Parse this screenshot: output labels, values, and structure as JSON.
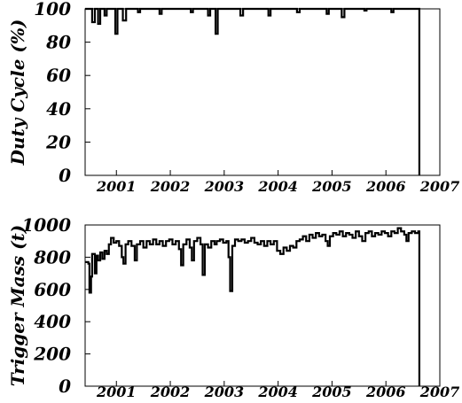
{
  "chart_data": [
    {
      "type": "line",
      "ylabel": "Duty Cycle (%)",
      "xlabel": "",
      "title": "",
      "xlim": [
        2000.42,
        2007.0
      ],
      "ylim": [
        0,
        100
      ],
      "yticks": [
        0,
        20,
        40,
        60,
        80,
        100
      ],
      "xticks": [
        2001,
        2002,
        2003,
        2004,
        2005,
        2006,
        2007
      ],
      "xtick_labels": [
        "2001",
        "2002",
        "2003",
        "2004",
        "2005",
        "2006",
        "2007"
      ],
      "ytick_labels": [
        "0",
        "20",
        "40",
        "60",
        "80",
        "100"
      ],
      "grid": false,
      "series": [
        {
          "style": "step",
          "points": [
            [
              2000.42,
              100
            ],
            [
              2000.55,
              100
            ],
            [
              2000.55,
              92
            ],
            [
              2000.6,
              92
            ],
            [
              2000.6,
              100
            ],
            [
              2000.66,
              100
            ],
            [
              2000.66,
              91
            ],
            [
              2000.7,
              91
            ],
            [
              2000.7,
              100
            ],
            [
              2000.78,
              100
            ],
            [
              2000.78,
              96
            ],
            [
              2000.82,
              96
            ],
            [
              2000.82,
              100
            ],
            [
              2000.98,
              100
            ],
            [
              2000.98,
              85
            ],
            [
              2001.02,
              85
            ],
            [
              2001.02,
              100
            ],
            [
              2001.12,
              100
            ],
            [
              2001.12,
              93
            ],
            [
              2001.18,
              93
            ],
            [
              2001.18,
              100
            ],
            [
              2001.4,
              100
            ],
            [
              2001.4,
              98
            ],
            [
              2001.44,
              98
            ],
            [
              2001.44,
              100
            ],
            [
              2001.8,
              100
            ],
            [
              2001.8,
              97
            ],
            [
              2001.84,
              97
            ],
            [
              2001.84,
              100
            ],
            [
              2002.38,
              100
            ],
            [
              2002.38,
              98
            ],
            [
              2002.42,
              98
            ],
            [
              2002.42,
              100
            ],
            [
              2002.7,
              100
            ],
            [
              2002.7,
              96
            ],
            [
              2002.74,
              96
            ],
            [
              2002.74,
              100
            ],
            [
              2002.84,
              100
            ],
            [
              2002.84,
              85
            ],
            [
              2002.88,
              85
            ],
            [
              2002.88,
              100
            ],
            [
              2003.3,
              100
            ],
            [
              2003.3,
              96
            ],
            [
              2003.35,
              96
            ],
            [
              2003.35,
              100
            ],
            [
              2003.82,
              100
            ],
            [
              2003.82,
              96
            ],
            [
              2003.86,
              96
            ],
            [
              2003.86,
              100
            ],
            [
              2004.35,
              100
            ],
            [
              2004.35,
              98
            ],
            [
              2004.4,
              98
            ],
            [
              2004.4,
              100
            ],
            [
              2004.9,
              100
            ],
            [
              2004.9,
              97
            ],
            [
              2004.94,
              97
            ],
            [
              2004.94,
              100
            ],
            [
              2005.18,
              100
            ],
            [
              2005.18,
              95
            ],
            [
              2005.23,
              95
            ],
            [
              2005.23,
              100
            ],
            [
              2005.6,
              100
            ],
            [
              2005.6,
              99
            ],
            [
              2005.64,
              99
            ],
            [
              2005.64,
              100
            ],
            [
              2006.1,
              100
            ],
            [
              2006.1,
              98
            ],
            [
              2006.14,
              98
            ],
            [
              2006.14,
              100
            ],
            [
              2006.62,
              100
            ],
            [
              2006.62,
              0
            ]
          ]
        }
      ]
    },
    {
      "type": "line",
      "ylabel": "Trigger Mass (t)",
      "xlabel": "",
      "title": "",
      "xlim": [
        2000.42,
        2007.0
      ],
      "ylim": [
        0,
        1000
      ],
      "yticks": [
        0,
        200,
        400,
        600,
        800,
        1000
      ],
      "xticks": [
        2001,
        2002,
        2003,
        2004,
        2005,
        2006,
        2007
      ],
      "xtick_labels": [
        "2001",
        "2002",
        "2003",
        "2004",
        "2005",
        "2006",
        "2007"
      ],
      "ytick_labels": [
        "0",
        "200",
        "400",
        "600",
        "800",
        "1000"
      ],
      "grid": false,
      "series": [
        {
          "style": "step",
          "points": [
            [
              2000.42,
              770
            ],
            [
              2000.48,
              760
            ],
            [
              2000.5,
              580
            ],
            [
              2000.53,
              680
            ],
            [
              2000.55,
              820
            ],
            [
              2000.6,
              700
            ],
            [
              2000.63,
              810
            ],
            [
              2000.66,
              780
            ],
            [
              2000.7,
              830
            ],
            [
              2000.74,
              790
            ],
            [
              2000.78,
              840
            ],
            [
              2000.82,
              820
            ],
            [
              2000.86,
              880
            ],
            [
              2000.9,
              920
            ],
            [
              2000.95,
              890
            ],
            [
              2001.0,
              900
            ],
            [
              2001.05,
              870
            ],
            [
              2001.1,
              800
            ],
            [
              2001.13,
              760
            ],
            [
              2001.17,
              880
            ],
            [
              2001.22,
              900
            ],
            [
              2001.28,
              870
            ],
            [
              2001.34,
              780
            ],
            [
              2001.38,
              880
            ],
            [
              2001.44,
              900
            ],
            [
              2001.5,
              860
            ],
            [
              2001.56,
              900
            ],
            [
              2001.62,
              880
            ],
            [
              2001.68,
              910
            ],
            [
              2001.74,
              880
            ],
            [
              2001.8,
              900
            ],
            [
              2001.86,
              870
            ],
            [
              2001.92,
              900
            ],
            [
              2001.98,
              910
            ],
            [
              2002.04,
              880
            ],
            [
              2002.1,
              900
            ],
            [
              2002.16,
              850
            ],
            [
              2002.2,
              750
            ],
            [
              2002.24,
              880
            ],
            [
              2002.3,
              910
            ],
            [
              2002.36,
              860
            ],
            [
              2002.4,
              780
            ],
            [
              2002.44,
              900
            ],
            [
              2002.5,
              920
            ],
            [
              2002.56,
              880
            ],
            [
              2002.6,
              690
            ],
            [
              2002.64,
              880
            ],
            [
              2002.7,
              860
            ],
            [
              2002.76,
              900
            ],
            [
              2002.82,
              880
            ],
            [
              2002.86,
              900
            ],
            [
              2002.92,
              910
            ],
            [
              2002.98,
              890
            ],
            [
              2003.04,
              900
            ],
            [
              2003.08,
              800
            ],
            [
              2003.11,
              590
            ],
            [
              2003.15,
              870
            ],
            [
              2003.2,
              910
            ],
            [
              2003.26,
              900
            ],
            [
              2003.32,
              910
            ],
            [
              2003.38,
              890
            ],
            [
              2003.44,
              900
            ],
            [
              2003.5,
              920
            ],
            [
              2003.56,
              890
            ],
            [
              2003.62,
              880
            ],
            [
              2003.68,
              900
            ],
            [
              2003.74,
              870
            ],
            [
              2003.8,
              900
            ],
            [
              2003.86,
              880
            ],
            [
              2003.92,
              900
            ],
            [
              2003.98,
              840
            ],
            [
              2004.04,
              820
            ],
            [
              2004.1,
              860
            ],
            [
              2004.16,
              840
            ],
            [
              2004.22,
              870
            ],
            [
              2004.28,
              860
            ],
            [
              2004.34,
              900
            ],
            [
              2004.4,
              910
            ],
            [
              2004.46,
              930
            ],
            [
              2004.52,
              900
            ],
            [
              2004.58,
              940
            ],
            [
              2004.64,
              920
            ],
            [
              2004.7,
              950
            ],
            [
              2004.76,
              930
            ],
            [
              2004.82,
              940
            ],
            [
              2004.88,
              900
            ],
            [
              2004.92,
              870
            ],
            [
              2004.96,
              930
            ],
            [
              2005.02,
              950
            ],
            [
              2005.08,
              940
            ],
            [
              2005.14,
              960
            ],
            [
              2005.2,
              930
            ],
            [
              2005.26,
              950
            ],
            [
              2005.32,
              940
            ],
            [
              2005.38,
              920
            ],
            [
              2005.44,
              960
            ],
            [
              2005.5,
              930
            ],
            [
              2005.56,
              900
            ],
            [
              2005.62,
              950
            ],
            [
              2005.68,
              960
            ],
            [
              2005.74,
              930
            ],
            [
              2005.8,
              950
            ],
            [
              2005.86,
              940
            ],
            [
              2005.92,
              960
            ],
            [
              2005.98,
              950
            ],
            [
              2006.04,
              930
            ],
            [
              2006.1,
              960
            ],
            [
              2006.16,
              950
            ],
            [
              2006.22,
              980
            ],
            [
              2006.28,
              960
            ],
            [
              2006.34,
              940
            ],
            [
              2006.38,
              900
            ],
            [
              2006.42,
              950
            ],
            [
              2006.48,
              960
            ],
            [
              2006.54,
              950
            ],
            [
              2006.6,
              960
            ],
            [
              2006.62,
              960
            ],
            [
              2006.62,
              0
            ]
          ]
        }
      ]
    }
  ]
}
